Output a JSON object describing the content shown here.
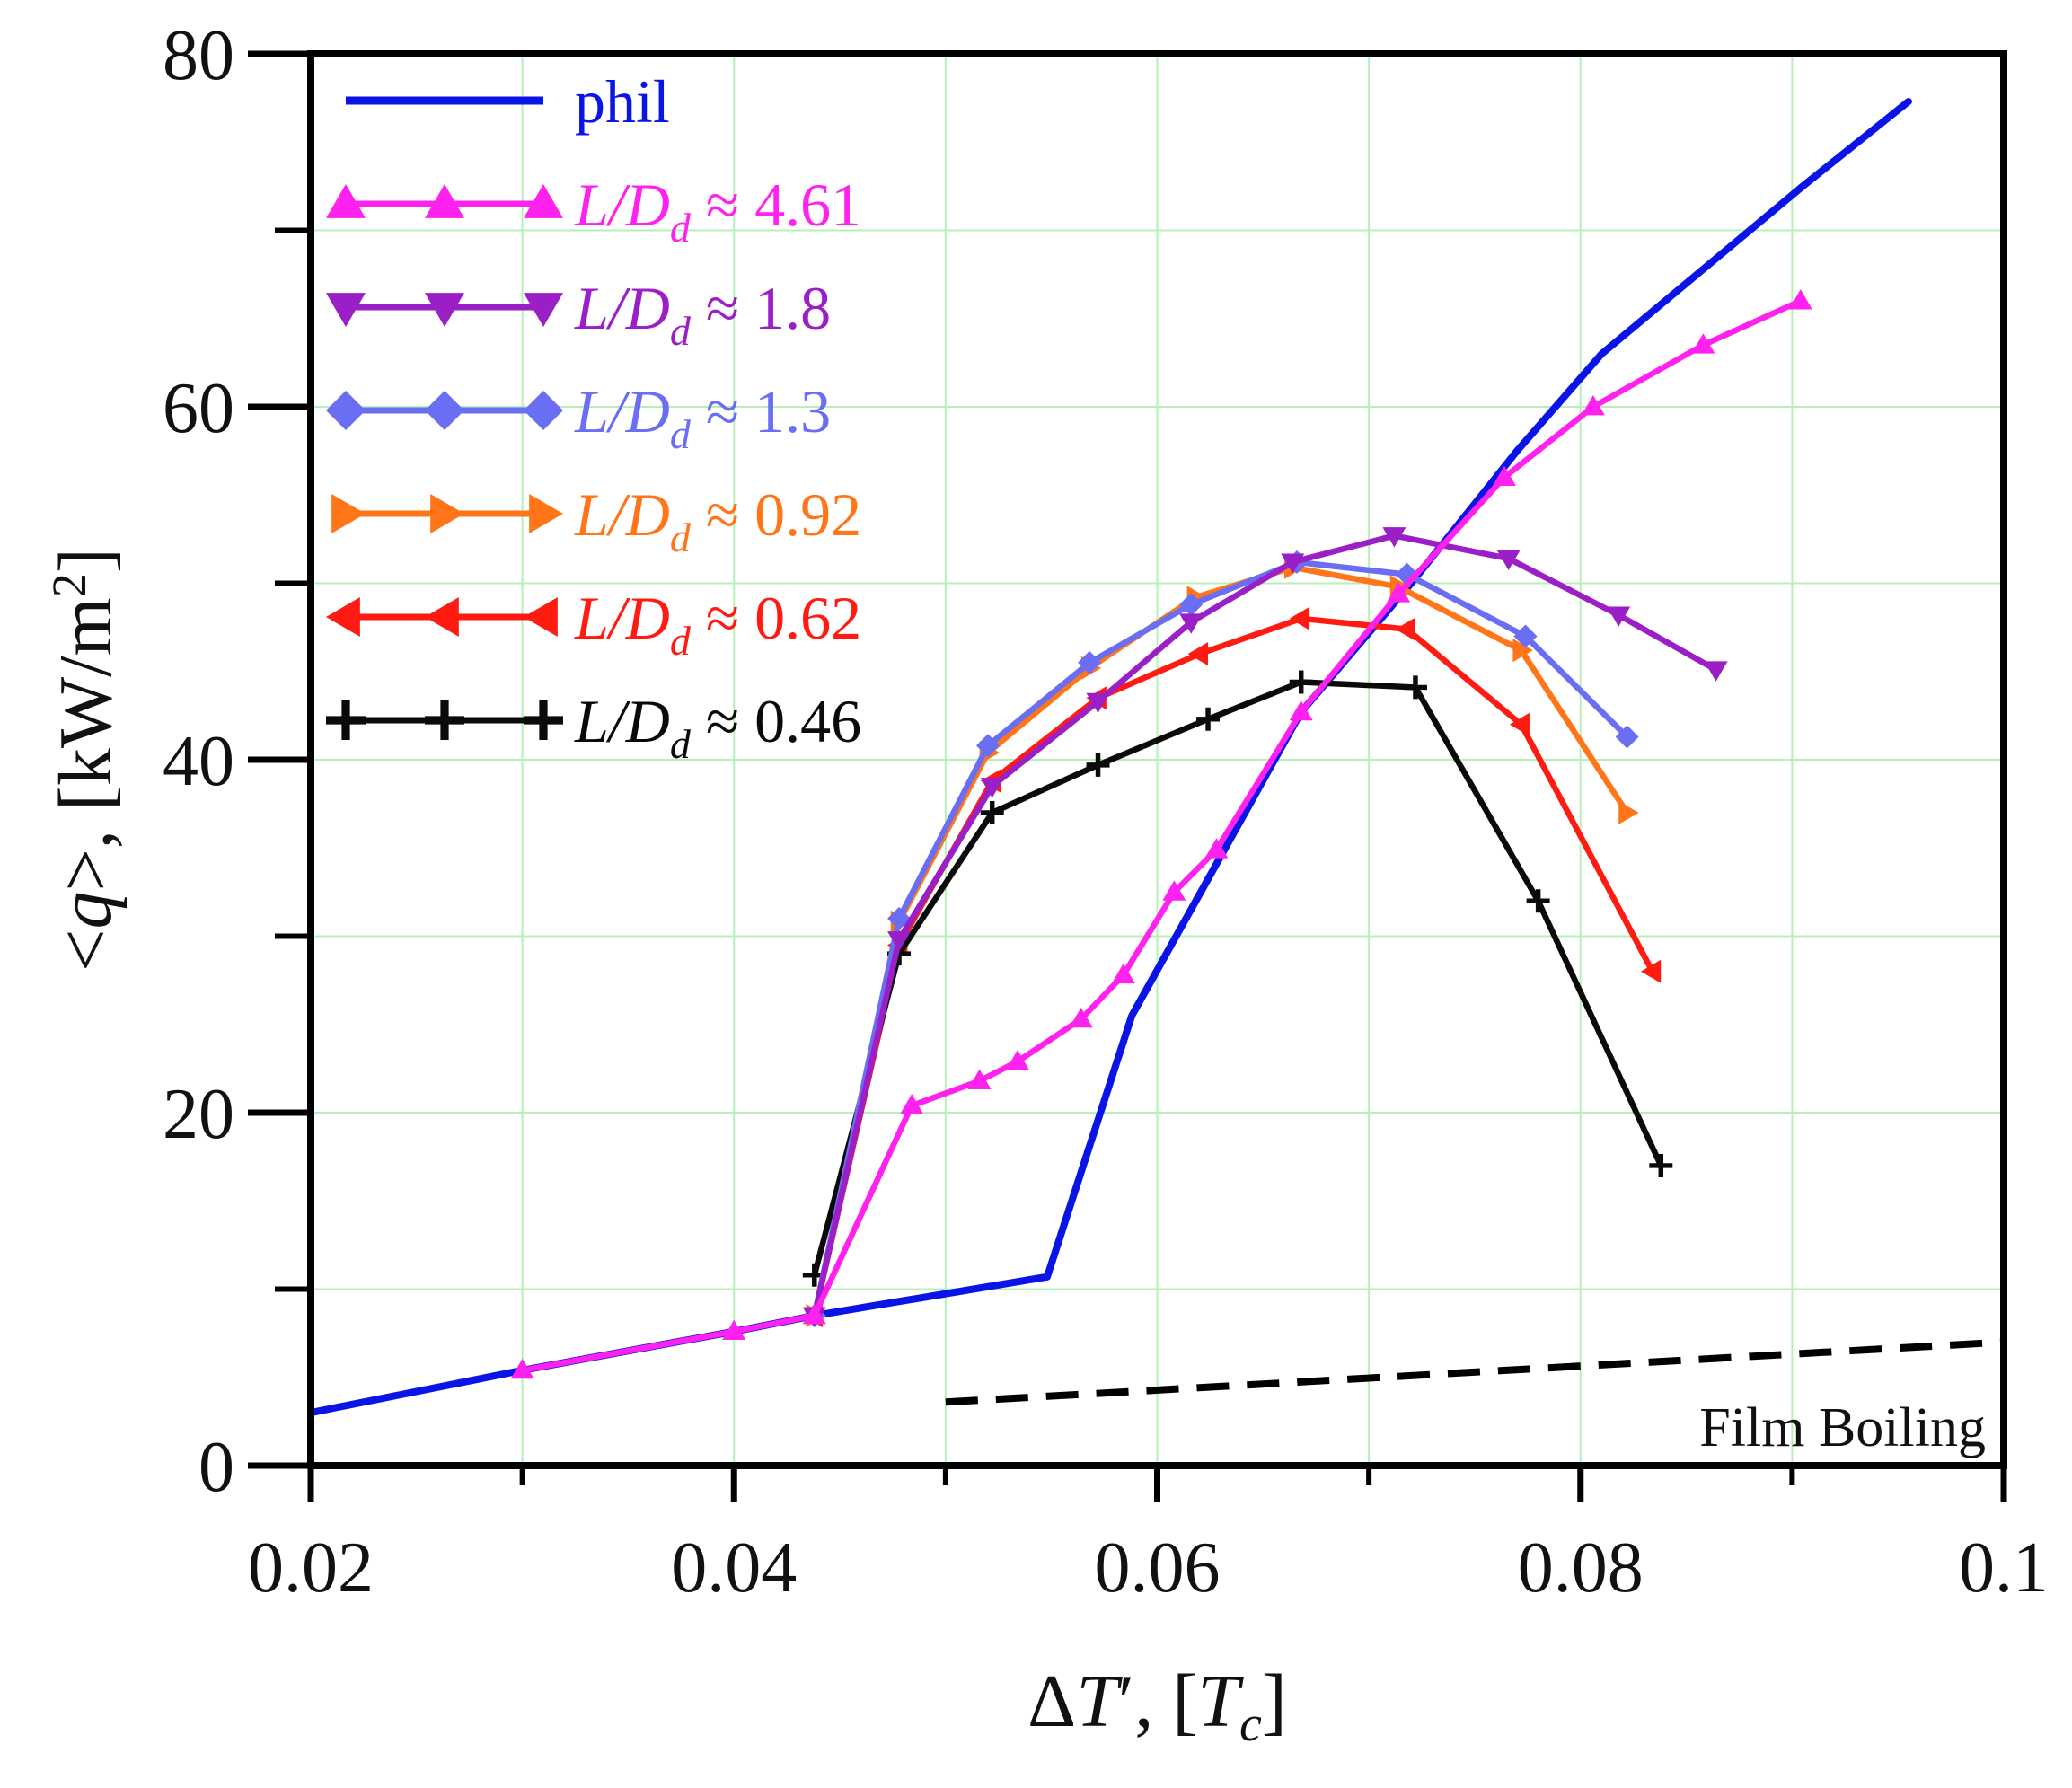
{
  "chart_data": {
    "type": "line",
    "title": "",
    "xlabel": "ΔT′, [T_c]",
    "ylabel": "<q>, [kW/m²]",
    "xlim": [
      0.02,
      0.1
    ],
    "ylim": [
      0,
      80
    ],
    "xticks": [
      0.02,
      0.04,
      0.06,
      0.08,
      0.1
    ],
    "xtick_labels": [
      "0.02",
      "0.04",
      "0.06",
      "0.08",
      "0.1"
    ],
    "yticks": [
      0,
      20,
      40,
      60,
      80
    ],
    "ytick_labels": [
      "0",
      "20",
      "40",
      "60",
      "80"
    ],
    "grid": true,
    "legend_position": "top-left",
    "series": [
      {
        "name": "phil",
        "legend_prefix": "phil",
        "legend_value": "",
        "color": "#0a14e6",
        "marker": "none",
        "x": [
          0.02,
          0.03,
          0.04,
          0.0438,
          0.0548,
          0.0588,
          0.0668,
          0.072,
          0.077,
          0.081,
          0.086,
          0.0905,
          0.0955
        ],
        "y": [
          3.0,
          5.4,
          7.6,
          8.5,
          10.7,
          25.5,
          42.7,
          50.0,
          57.5,
          63.0,
          68.0,
          72.5,
          77.3
        ]
      },
      {
        "name": "L/Dd ≈ 4.61",
        "legend_prefix": "L/D",
        "legend_sub": "d",
        "legend_value": " ≈ 4.61",
        "color": "#ff22ee",
        "marker": "triangle-up",
        "x": [
          0.03,
          0.04,
          0.0438,
          0.0484,
          0.0516,
          0.0534,
          0.0564,
          0.0584,
          0.0608,
          0.0628,
          0.0668,
          0.0714,
          0.0764,
          0.0806,
          0.0858,
          0.0904
        ],
        "y": [
          5.4,
          7.6,
          8.5,
          20.4,
          21.8,
          22.9,
          25.3,
          27.8,
          32.5,
          34.9,
          42.7,
          49.4,
          56.0,
          60.0,
          63.5,
          66.0
        ]
      },
      {
        "name": "L/Dd ≈ 1.8",
        "legend_prefix": "L/D",
        "legend_sub": "d",
        "legend_value": " ≈ 1.8",
        "color": "#9b1fc7",
        "marker": "triangle-down",
        "x": [
          0.0438,
          0.0478,
          0.0522,
          0.0572,
          0.0616,
          0.0664,
          0.0712,
          0.0766,
          0.0818,
          0.0864
        ],
        "y": [
          8.5,
          29.8,
          38.5,
          43.3,
          47.8,
          51.2,
          52.7,
          51.4,
          48.2,
          45.1
        ]
      },
      {
        "name": "L/Dd ≈ 1.3",
        "legend_prefix": "L/D",
        "legend_sub": "d",
        "legend_value": " ≈ 1.3",
        "color": "#6a6ef2",
        "marker": "diamond",
        "x": [
          0.0438,
          0.0478,
          0.052,
          0.0568,
          0.0616,
          0.0666,
          0.0718,
          0.0774,
          0.0822
        ],
        "y": [
          8.5,
          31.0,
          40.8,
          45.5,
          48.8,
          51.2,
          50.5,
          47.0,
          41.3
        ]
      },
      {
        "name": "L/Dd ≈ 0.92",
        "legend_prefix": "L/D",
        "legend_sub": "d",
        "legend_value": " ≈ 0.92",
        "color": "#ff7518",
        "marker": "triangle-right",
        "x": [
          0.0438,
          0.0478,
          0.052,
          0.0568,
          0.0618,
          0.0664,
          0.0714,
          0.0772,
          0.0822
        ],
        "y": [
          8.5,
          30.8,
          40.4,
          45.2,
          49.2,
          50.9,
          49.8,
          46.2,
          37.0
        ]
      },
      {
        "name": "L/Dd ≈ 0.62",
        "legend_prefix": "L/D",
        "legend_sub": "d",
        "legend_value": " ≈ 0.62",
        "color": "#ff1a12",
        "marker": "triangle-left",
        "x": [
          0.0438,
          0.0478,
          0.0522,
          0.0572,
          0.062,
          0.0668,
          0.0718,
          0.0772,
          0.0834
        ],
        "y": [
          8.5,
          29.5,
          38.8,
          43.5,
          46.0,
          48.0,
          47.4,
          42.0,
          28.0
        ]
      },
      {
        "name": "L/Dd ≈ 0.46",
        "legend_prefix": "L/D",
        "legend_sub": "d",
        "legend_value": " ≈ 0.46",
        "color": "#0a0a0a",
        "marker": "plus",
        "x": [
          0.0438,
          0.0478,
          0.0522,
          0.0572,
          0.0624,
          0.0668,
          0.0722,
          0.078,
          0.0838
        ],
        "y": [
          10.8,
          29.0,
          37.0,
          39.7,
          42.3,
          44.4,
          44.1,
          32.0,
          17.0
        ]
      }
    ],
    "annotations": [
      {
        "label": "Film Boiling",
        "style": "dashed",
        "color": "#000000",
        "x": [
          0.05,
          0.1
        ],
        "y": [
          3.6,
          7.0
        ]
      }
    ]
  }
}
